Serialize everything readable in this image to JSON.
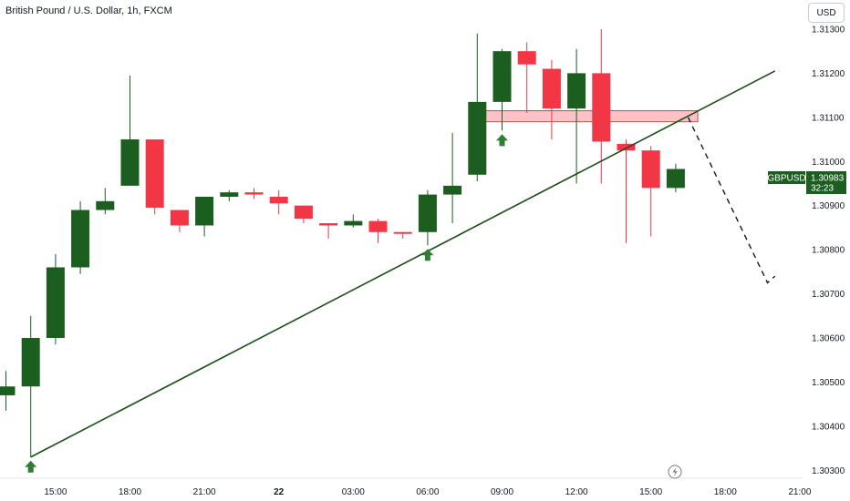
{
  "header": {
    "title": "British Pound / U.S. Dollar, 1h, FXCM",
    "currency_button": "USD"
  },
  "price_tag": {
    "symbol": "GBPUSD",
    "price": "1.30983",
    "countdown": "32:23",
    "color": "#1b5e20"
  },
  "colors": {
    "up": "#1b5e20",
    "down": "#f23645",
    "zone": "#f23645",
    "arrow": "#2e7d32",
    "trendline": "#1b4d16"
  },
  "chart_data": {
    "type": "candlestick",
    "y_axis": {
      "ticks": [
        "1.31300",
        "1.31200",
        "1.31100",
        "1.31000",
        "1.30900",
        "1.30800",
        "1.30700",
        "1.30600",
        "1.30500",
        "1.30400",
        "1.30300"
      ],
      "range": [
        1.30282,
        1.31366
      ]
    },
    "x_axis": {
      "ticks": [
        "15:00",
        "18:00",
        "21:00",
        "22",
        "03:00",
        "06:00",
        "09:00",
        "12:00",
        "15:00",
        "18:00",
        "21:00"
      ]
    },
    "candles": [
      {
        "o": 1.3047,
        "h": 1.30525,
        "l": 1.30435,
        "c": 1.3049
      },
      {
        "o": 1.3049,
        "h": 1.3065,
        "l": 1.3033,
        "c": 1.306
      },
      {
        "o": 1.306,
        "h": 1.3079,
        "l": 1.30585,
        "c": 1.3076
      },
      {
        "o": 1.3076,
        "h": 1.3091,
        "l": 1.30745,
        "c": 1.3089
      },
      {
        "o": 1.3089,
        "h": 1.3094,
        "l": 1.3088,
        "c": 1.3091
      },
      {
        "o": 1.30945,
        "h": 1.31195,
        "l": 1.30945,
        "c": 1.3105
      },
      {
        "o": 1.3105,
        "h": 1.3105,
        "l": 1.3088,
        "c": 1.30895
      },
      {
        "o": 1.3089,
        "h": 1.3089,
        "l": 1.3084,
        "c": 1.30855
      },
      {
        "o": 1.30855,
        "h": 1.3092,
        "l": 1.3083,
        "c": 1.3092
      },
      {
        "o": 1.3092,
        "h": 1.30935,
        "l": 1.3091,
        "c": 1.3093
      },
      {
        "o": 1.3093,
        "h": 1.3094,
        "l": 1.30915,
        "c": 1.30925
      },
      {
        "o": 1.3092,
        "h": 1.30935,
        "l": 1.3088,
        "c": 1.30905
      },
      {
        "o": 1.309,
        "h": 1.309,
        "l": 1.3086,
        "c": 1.3087
      },
      {
        "o": 1.3086,
        "h": 1.3086,
        "l": 1.30825,
        "c": 1.30855
      },
      {
        "o": 1.30855,
        "h": 1.3088,
        "l": 1.3085,
        "c": 1.30865
      },
      {
        "o": 1.30865,
        "h": 1.3087,
        "l": 1.30815,
        "c": 1.3084
      },
      {
        "o": 1.3084,
        "h": 1.3084,
        "l": 1.30825,
        "c": 1.30836
      },
      {
        "o": 1.3084,
        "h": 1.30935,
        "l": 1.3081,
        "c": 1.30925
      },
      {
        "o": 1.30925,
        "h": 1.31065,
        "l": 1.3086,
        "c": 1.30945
      },
      {
        "o": 1.3097,
        "h": 1.3129,
        "l": 1.30955,
        "c": 1.31135
      },
      {
        "o": 1.31135,
        "h": 1.31255,
        "l": 1.3107,
        "c": 1.3125
      },
      {
        "o": 1.3125,
        "h": 1.3127,
        "l": 1.3111,
        "c": 1.3122
      },
      {
        "o": 1.3121,
        "h": 1.3123,
        "l": 1.3105,
        "c": 1.3112
      },
      {
        "o": 1.3112,
        "h": 1.31255,
        "l": 1.3095,
        "c": 1.312
      },
      {
        "o": 1.312,
        "h": 1.313,
        "l": 1.3095,
        "c": 1.31045
      },
      {
        "o": 1.3104,
        "h": 1.3105,
        "l": 1.30815,
        "c": 1.31025
      },
      {
        "o": 1.31025,
        "h": 1.31035,
        "l": 1.3083,
        "c": 1.3094
      },
      {
        "o": 1.3094,
        "h": 1.30995,
        "l": 1.3093,
        "c": 1.30983
      }
    ],
    "annotations": {
      "resistance_zone": {
        "from_candle": 19,
        "to_candle": 28,
        "price_top": 1.31115,
        "price_bottom": 1.3109
      },
      "trendline": {
        "from": {
          "candle": 1,
          "price": 1.3033
        },
        "to": {
          "candle": 31,
          "price": 1.31205
        }
      },
      "up_arrows": [
        {
          "candle": 1,
          "price": 1.3033
        },
        {
          "candle": 17,
          "price": 1.3081
        },
        {
          "candle": 20,
          "price": 1.3107
        }
      ],
      "projection": [
        {
          "candle": 27.5,
          "price": 1.311
        },
        {
          "candle": 30.7,
          "price": 1.30725
        },
        {
          "candle": 31,
          "price": 1.3074
        }
      ]
    }
  }
}
